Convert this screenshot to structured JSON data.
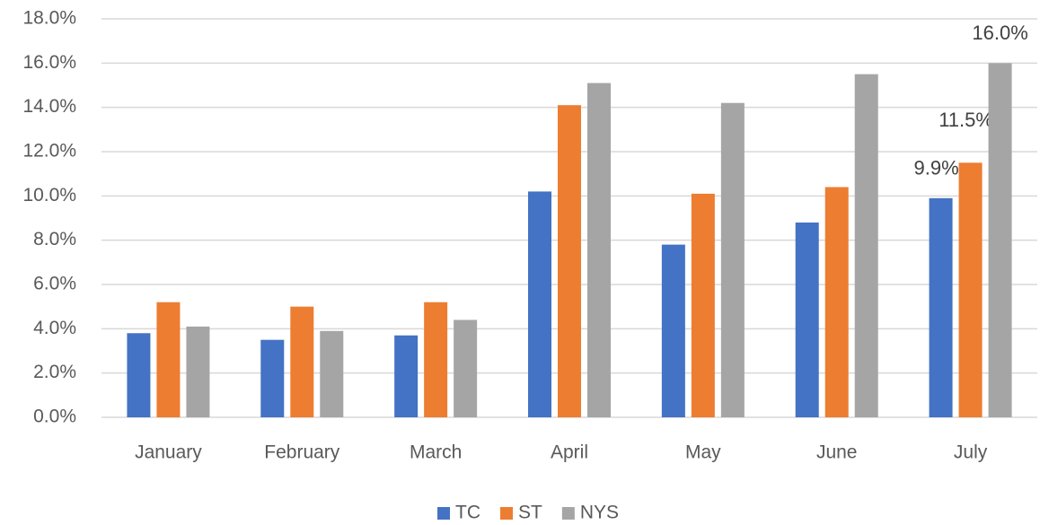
{
  "chart_data": {
    "type": "bar",
    "categories": [
      "January",
      "February",
      "March",
      "April",
      "May",
      "June",
      "July"
    ],
    "series": [
      {
        "name": "TC",
        "color": "#4472c4",
        "values": [
          3.8,
          3.5,
          3.7,
          10.2,
          7.8,
          8.8,
          9.9
        ],
        "value_labels": [
          null,
          null,
          null,
          null,
          null,
          null,
          "9.9%"
        ]
      },
      {
        "name": "ST",
        "color": "#ed7d31",
        "values": [
          5.2,
          5.0,
          5.2,
          14.1,
          10.1,
          10.4,
          11.5
        ],
        "value_labels": [
          null,
          null,
          null,
          null,
          null,
          null,
          "11.5%"
        ]
      },
      {
        "name": "NYS",
        "color": "#a5a5a5",
        "values": [
          4.1,
          3.9,
          4.4,
          15.1,
          14.2,
          15.5,
          16.0
        ],
        "value_labels": [
          null,
          null,
          null,
          null,
          null,
          null,
          "16.0%"
        ]
      }
    ],
    "ylim": [
      0,
      18
    ],
    "yticks": [
      {
        "value": 0,
        "label": "0.0%"
      },
      {
        "value": 2,
        "label": "2.0%"
      },
      {
        "value": 4,
        "label": "4.0%"
      },
      {
        "value": 6,
        "label": "6.0%"
      },
      {
        "value": 8,
        "label": "8.0%"
      },
      {
        "value": 10,
        "label": "10.0%"
      },
      {
        "value": 12,
        "label": "12.0%"
      },
      {
        "value": 14,
        "label": "14.0%"
      },
      {
        "value": 16,
        "label": "16.0%"
      },
      {
        "value": 18,
        "label": "18.0%"
      }
    ],
    "grid": true,
    "legend": "bottom"
  }
}
